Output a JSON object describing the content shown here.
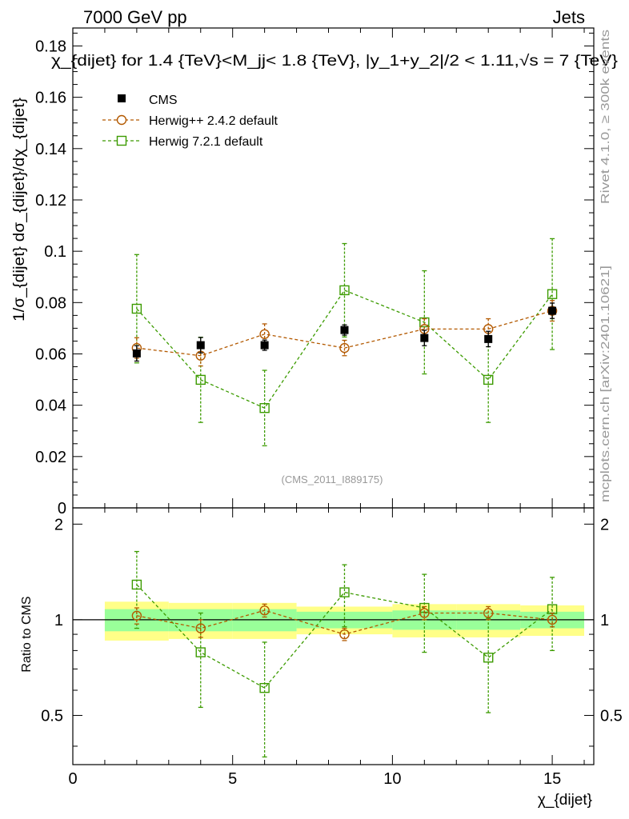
{
  "header": {
    "left": "7000 GeV pp",
    "right": "Jets"
  },
  "title": "χ_{dijet} for 1.4 {TeV}<M_jj< 1.8 {TeV}, |y_1+y_2|/2 < 1.11,√s = 7 {TeV}",
  "side_labels": {
    "rivet": "Rivet 4.1.0, ≥ 300k events",
    "mcplots": "mcplots.cern.ch [arXiv:2401.10621]"
  },
  "watermark": "(CMS_2011_I889175)",
  "chart_data": [
    {
      "type": "scatter",
      "panel": "main",
      "ylabel": "1/σ_{dijet} dσ_{dijet}/dχ_{dijet}",
      "ylim": [
        0,
        0.187
      ],
      "xlim": [
        0,
        16.3
      ],
      "y_ticks": [
        0,
        0.02,
        0.04,
        0.06,
        0.08,
        0.1,
        0.12,
        0.14,
        0.16,
        0.18
      ],
      "y_tick_labels": [
        "0",
        "0.02",
        "0.04",
        "0.06",
        "0.08",
        "0.1",
        "0.12",
        "0.14",
        "0.16",
        "0.18"
      ],
      "legend": [
        "CMS",
        "Herwig++ 2.4.2 default",
        "Herwig 7.2.1 default"
      ],
      "series": [
        {
          "name": "CMS",
          "color": "#000000",
          "marker": "filled-square",
          "x": [
            2,
            4,
            6,
            8.5,
            11,
            13,
            15
          ],
          "values": [
            0.0602,
            0.0634,
            0.0634,
            0.0693,
            0.0662,
            0.0658,
            0.0768
          ],
          "err": [
            0.003,
            0.003,
            0.002,
            0.002,
            0.003,
            0.003,
            0.003
          ]
        },
        {
          "name": "Herwig++ 2.4.2 default",
          "color": "#b35900",
          "marker": "open-circle",
          "x": [
            2,
            4,
            6,
            8.5,
            11,
            13,
            15
          ],
          "values": [
            0.0623,
            0.0593,
            0.0677,
            0.0623,
            0.0697,
            0.0697,
            0.0768
          ],
          "err": [
            0.004,
            0.004,
            0.004,
            0.003,
            0.004,
            0.004,
            0.004
          ]
        },
        {
          "name": "Herwig 7.2.1 default",
          "color": "#3c9b00",
          "marker": "open-square",
          "x": [
            2,
            4,
            6,
            8.5,
            11,
            13,
            15
          ],
          "values": [
            0.0776,
            0.0499,
            0.0389,
            0.0848,
            0.0723,
            0.0499,
            0.0833
          ],
          "err": [
            0.0211,
            0.0166,
            0.0147,
            0.0182,
            0.0201,
            0.0166,
            0.0216
          ]
        }
      ]
    },
    {
      "type": "scatter",
      "panel": "ratio",
      "ylabel": "Ratio to CMS",
      "xlabel": "χ_{dijet}",
      "ylim": [
        0.35,
        2.25
      ],
      "xlim": [
        0,
        16.3
      ],
      "y_ticks": [
        0.5,
        1,
        2
      ],
      "y_tick_labels": [
        "0.5",
        "1",
        "2"
      ],
      "x_ticks": [
        0,
        5,
        10,
        15
      ],
      "x_tick_labels": [
        "0",
        "5",
        "10",
        "15"
      ],
      "bands": [
        {
          "x0": 1,
          "x1": 3,
          "inner": [
            0.92,
            1.08
          ],
          "outer": [
            0.86,
            1.14
          ]
        },
        {
          "x0": 3,
          "x1": 5,
          "inner": [
            0.92,
            1.08
          ],
          "outer": [
            0.87,
            1.13
          ]
        },
        {
          "x0": 5,
          "x1": 7,
          "inner": [
            0.92,
            1.08
          ],
          "outer": [
            0.87,
            1.13
          ]
        },
        {
          "x0": 7,
          "x1": 10,
          "inner": [
            0.94,
            1.06
          ],
          "outer": [
            0.9,
            1.1
          ]
        },
        {
          "x0": 10,
          "x1": 12,
          "inner": [
            0.93,
            1.07
          ],
          "outer": [
            0.88,
            1.12
          ]
        },
        {
          "x0": 12,
          "x1": 14,
          "inner": [
            0.93,
            1.07
          ],
          "outer": [
            0.88,
            1.12
          ]
        },
        {
          "x0": 14,
          "x1": 16,
          "inner": [
            0.94,
            1.06
          ],
          "outer": [
            0.89,
            1.11
          ]
        }
      ],
      "series": [
        {
          "name": "Herwig++ 2.4.2 default",
          "color": "#b35900",
          "marker": "open-circle",
          "x": [
            2,
            4,
            6,
            8.5,
            11,
            13,
            15
          ],
          "values": [
            1.03,
            0.94,
            1.07,
            0.9,
            1.05,
            1.05,
            1.0
          ],
          "err": [
            0.06,
            0.06,
            0.05,
            0.04,
            0.05,
            0.05,
            0.05
          ]
        },
        {
          "name": "Herwig 7.2.1 default",
          "color": "#3c9b00",
          "marker": "open-square",
          "x": [
            2,
            4,
            6,
            8.5,
            11,
            13,
            15
          ],
          "values": [
            1.29,
            0.79,
            0.61,
            1.22,
            1.09,
            0.76,
            1.08
          ],
          "err": [
            0.35,
            0.26,
            0.24,
            0.27,
            0.3,
            0.25,
            0.28
          ]
        }
      ]
    }
  ]
}
